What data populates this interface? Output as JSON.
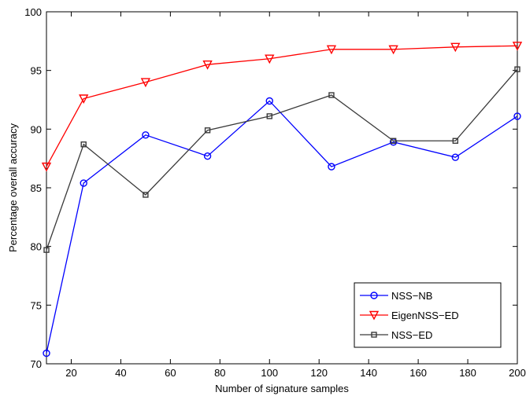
{
  "chart_data": {
    "type": "line",
    "xlabel": "Number of signature samples",
    "ylabel": "Percentage overall accuracy",
    "xlim": [
      10,
      200
    ],
    "ylim": [
      70,
      100
    ],
    "xticks": [
      20,
      40,
      60,
      80,
      100,
      120,
      140,
      160,
      180,
      200
    ],
    "yticks": [
      70,
      75,
      80,
      85,
      90,
      95,
      100
    ],
    "grid": false,
    "legend_position": "bottom-right",
    "x": [
      10,
      25,
      50,
      75,
      100,
      125,
      150,
      175,
      200
    ],
    "series": [
      {
        "name": "NSS−NB",
        "color": "#0000ff",
        "marker": "circle",
        "values": [
          70.9,
          85.4,
          89.5,
          87.7,
          92.4,
          86.8,
          88.9,
          87.6,
          91.1
        ]
      },
      {
        "name": "EigenNSS−ED",
        "color": "#ff0000",
        "marker": "triangle-down",
        "values": [
          86.8,
          92.6,
          94.0,
          95.5,
          96.0,
          96.8,
          96.8,
          97.0,
          97.1
        ]
      },
      {
        "name": "NSS−ED",
        "color": "#3a3a3a",
        "marker": "square",
        "values": [
          79.7,
          88.7,
          84.4,
          89.9,
          91.1,
          92.9,
          89.0,
          89.0,
          95.1
        ]
      }
    ]
  }
}
